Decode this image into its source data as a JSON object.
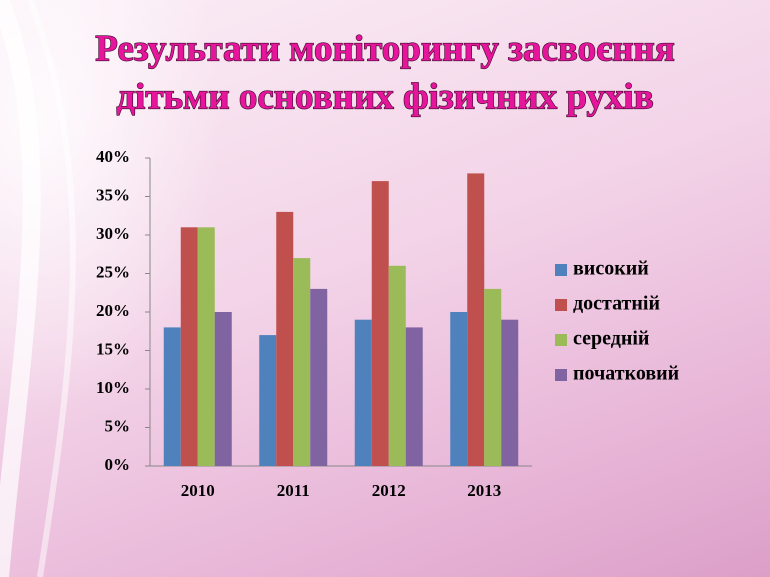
{
  "chart_data": {
    "type": "bar",
    "title": [
      "Результати моніторингу засвоєння",
      "дітьми основних фізичних рухів"
    ],
    "categories": [
      "2010",
      "2011",
      "2012",
      "2013"
    ],
    "series": [
      {
        "name": "високий",
        "color": "#4f81bd",
        "values": [
          18,
          17,
          19,
          20
        ]
      },
      {
        "name": "достатній",
        "color": "#c0504d",
        "values": [
          31,
          33,
          37,
          38
        ]
      },
      {
        "name": "середній",
        "color": "#9bbb59",
        "values": [
          31,
          27,
          26,
          23
        ]
      },
      {
        "name": "початковий",
        "color": "#8064a2",
        "values": [
          20,
          23,
          18,
          19
        ]
      }
    ],
    "ylim": [
      0,
      40
    ],
    "yticks": [
      {
        "value": 0,
        "label": "0%"
      },
      {
        "value": 5,
        "label": "5%"
      },
      {
        "value": 10,
        "label": "10%"
      },
      {
        "value": 15,
        "label": "15%"
      },
      {
        "value": 20,
        "label": "20%"
      },
      {
        "value": 25,
        "label": "25%"
      },
      {
        "value": 30,
        "label": "30%"
      },
      {
        "value": 35,
        "label": "35%"
      },
      {
        "value": 40,
        "label": "40%"
      }
    ],
    "grid": false,
    "legend": "right"
  }
}
